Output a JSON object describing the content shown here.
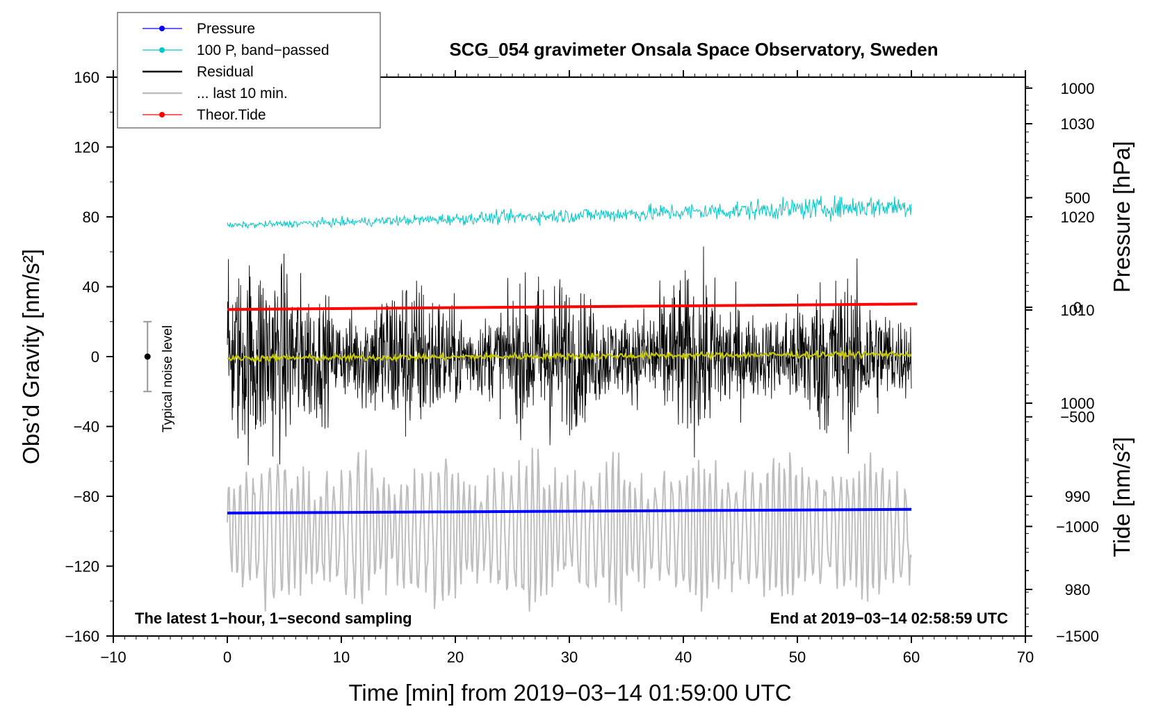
{
  "chart_data": {
    "type": "line",
    "title": "SCG_054 gravimeter Onsala Space Observatory, Sweden",
    "xlabel": "Time [min] from 2019−03−14 01:59:00 UTC",
    "ylabel_left": "Obs’d Gravity [nm/s²]",
    "ylabel_right_top": "Pressure [hPa]",
    "ylabel_right_bottom": "Tide [nm/s²]",
    "xlim": [
      -10,
      70
    ],
    "ylim_left": [
      -160,
      160
    ],
    "pressure_axis": {
      "range": [
        975,
        1035
      ],
      "ticks": [
        980,
        990,
        1000,
        1010,
        1020,
        1030
      ]
    },
    "tide_axis": {
      "range": [
        -1500,
        1050
      ],
      "ticks": [
        -1500,
        -1000,
        -500,
        0,
        500,
        1000
      ]
    },
    "x_ticks": [
      -10,
      0,
      10,
      20,
      30,
      40,
      50,
      60,
      70
    ],
    "x_tick_labels": [
      "−10",
      "0",
      "10",
      "20",
      "30",
      "40",
      "50",
      "60",
      "70"
    ],
    "y_ticks_left": [
      -160,
      -120,
      -80,
      -40,
      0,
      40,
      80,
      120,
      160
    ],
    "y_tick_labels_left": [
      "−160",
      "−120",
      "−80",
      "−40",
      "0",
      "40",
      "80",
      "120",
      "160"
    ],
    "pressure_tick_labels": [
      "980",
      "990",
      "1000",
      "1010",
      "1020",
      "1030"
    ],
    "tide_tick_labels": [
      "−1500",
      "−1000",
      "−500",
      "0",
      "500",
      "1000"
    ],
    "annotations": {
      "left": "The latest 1−hour, 1−second sampling",
      "right": "End at 2019−03−14 02:58:59 UTC"
    },
    "noise_level": {
      "label": "Typical noise level",
      "x": -7,
      "center": 0,
      "half_range": 20
    },
    "legend": [
      {
        "label": "Pressure",
        "color": "#0000ff",
        "marker": true
      },
      {
        "label": "100 P, band−passed",
        "color": "#00c8c8",
        "marker": true
      },
      {
        "label": "Residual",
        "color": "#000000",
        "marker": false
      },
      {
        "label": "... last 10 min.",
        "color": "#bebebe",
        "marker": false
      },
      {
        "label": "Theor.Tide",
        "color": "#ff0000",
        "marker": true
      }
    ],
    "series": [
      {
        "name": "Pressure",
        "axis": "pressure",
        "color": "#0000ff",
        "x_range": [
          0,
          60
        ],
        "start": 988.2,
        "end": 988.6
      },
      {
        "name": "100 P, band-passed",
        "axis": "left",
        "color": "#00c8c8",
        "x_range": [
          0,
          60
        ],
        "start": 75,
        "end": 86
      },
      {
        "name": "Residual",
        "axis": "left",
        "color": "#000000",
        "x_range": [
          0,
          60
        ],
        "mean": 0,
        "min": -66,
        "max": 65
      },
      {
        "name": "... last 10 min.",
        "axis": "left",
        "color": "#bebebe",
        "x_range": [
          0,
          60
        ],
        "mean": -100,
        "min": -146,
        "max": -52
      },
      {
        "name": "Smoothed residual",
        "axis": "left",
        "color": "#c8c800",
        "x_range": [
          0,
          60
        ],
        "start": -1,
        "end": 1.5
      },
      {
        "name": "Theor.Tide",
        "axis": "tide",
        "color": "#ff0000",
        "x_range": [
          0,
          60.5
        ],
        "start": -10,
        "end": 15
      }
    ]
  }
}
